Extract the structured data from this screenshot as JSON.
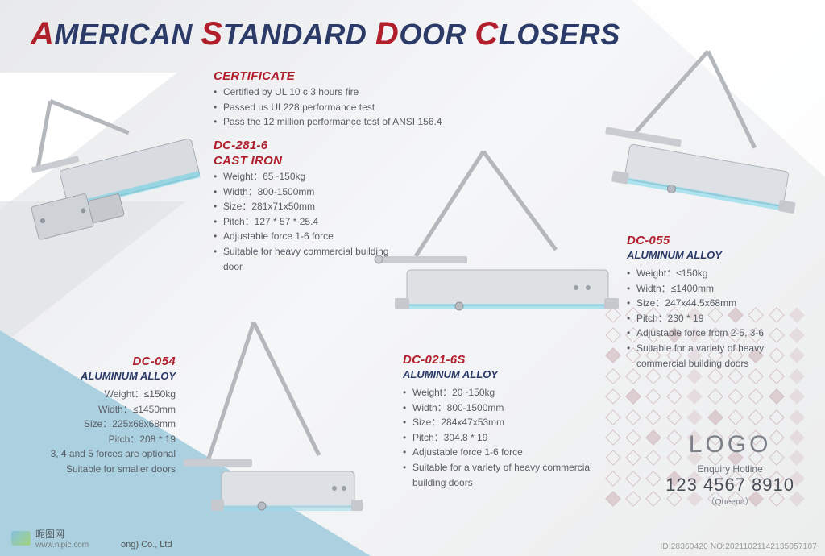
{
  "title": {
    "words": [
      {
        "cap": "A",
        "rest": "MERICAN"
      },
      {
        "cap": "S",
        "rest": "TANDARD"
      },
      {
        "cap": "D",
        "rest": "OOR"
      },
      {
        "cap": "C",
        "rest": "LOSERS"
      }
    ]
  },
  "colors": {
    "title_navy": "#2b3a67",
    "accent_red": "#b11f2d",
    "body_text": "#5a5e66",
    "teal_triangle": "#abd0df",
    "metal_light": "#e1e3e6",
    "metal_mid": "#c3c7cc",
    "metal_dark": "#9aa0a7",
    "metal_shadow": "#7a8088",
    "cyan_edge": "#58cfe8"
  },
  "certificate": {
    "heading": "CERTIFICATE",
    "items": [
      "Certified by UL 10 c 3 hours fire",
      "Passed us UL228 performance test",
      "Pass the 12 million performance test of ANSI 156.4"
    ]
  },
  "products": {
    "dc281": {
      "model": "DC-281-6",
      "material": "CAST IRON",
      "specs": [
        "Weight：65~150kg",
        "Width：800-1500mm",
        "Size：281x71x50mm",
        "Pitch：127 * 57 * 25.4",
        "Adjustable force 1-6 force",
        "Suitable for heavy commercial building door"
      ]
    },
    "dc054": {
      "model": "DC-054",
      "material": "ALUMINUM ALLOY",
      "specs": [
        "Weight：≤150kg",
        "Width：≤1450mm",
        "Size：225x68x68mm",
        "Pitch：208 * 19",
        "3, 4 and 5 forces are optional",
        "Suitable for smaller doors"
      ]
    },
    "dc021": {
      "model": "DC-021-6S",
      "material": "ALUMINUM ALLOY",
      "specs": [
        "Weight：20~150kg",
        "Width：800-1500mm",
        "Size：284x47x53mm",
        "Pitch：304.8 * 19",
        "Adjustable force 1-6 force",
        "Suitable for a variety of heavy commercial building doors"
      ]
    },
    "dc055": {
      "model": "DC-055",
      "material": "ALUMINUM ALLOY",
      "specs": [
        "Weight：≤150kg",
        "Width：≤1400mm",
        "Size：247x44.5x68mm",
        "Pitch：230 * 19",
        "Adjustable force from 2-5, 3-6",
        "Suitable for a variety of heavy commercial building doors"
      ]
    }
  },
  "logo": {
    "text": "LOGO",
    "hotline_label": "Enquiry Hotline",
    "hotline_number": "123 4567 8910",
    "hotline_sub": "（Queena）"
  },
  "footer": {
    "site_cn": "昵图网",
    "site_url": "www.nipic.com",
    "company": "ong) Co., Ltd",
    "id": "ID:28360420 NO:20211021142135057107"
  }
}
